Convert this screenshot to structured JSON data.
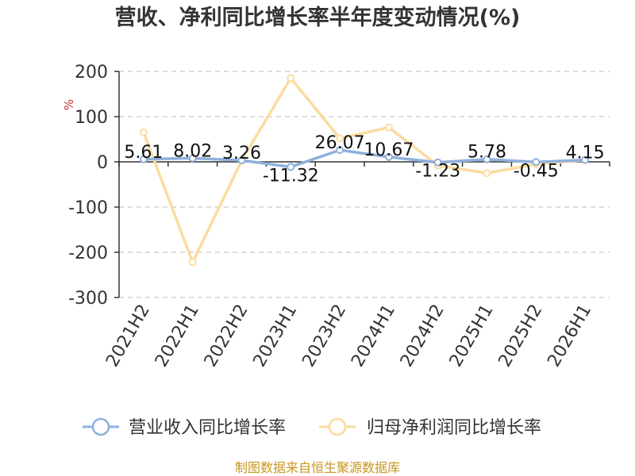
{
  "chart_data": {
    "type": "line",
    "title": "营收、净利同比增长率半年度变动情况(%)",
    "yunit": "%",
    "ylim": [
      -300,
      200
    ],
    "yticks": [
      200,
      100,
      0,
      -100,
      -200,
      -300
    ],
    "grid": true,
    "legend_position": "bottom",
    "categories": [
      "2021H2",
      "2022H1",
      "2022H2",
      "2023H1",
      "2023H2",
      "2024H1",
      "2024H2",
      "2025H1",
      "2025H2",
      "2026H1"
    ],
    "series": [
      {
        "name": "营业收入同比增长率",
        "color": "#8fb0dc",
        "values": [
          5.61,
          8.02,
          3.26,
          -11.32,
          26.07,
          10.67,
          -1.23,
          5.78,
          -0.45,
          4.15
        ],
        "labels": [
          "5.61",
          "8.02",
          "3.26",
          "-11.32",
          "26.07",
          "10.67",
          "-1.23",
          "5.78",
          "-0.45",
          "4.15"
        ]
      },
      {
        "name": "归母净利润同比增长率",
        "color": "#fbdc9e",
        "values": [
          65,
          -222,
          3,
          185,
          52,
          76,
          -8,
          -25,
          -5,
          4
        ]
      }
    ],
    "source": "制图数据来自恒生聚源数据库"
  }
}
